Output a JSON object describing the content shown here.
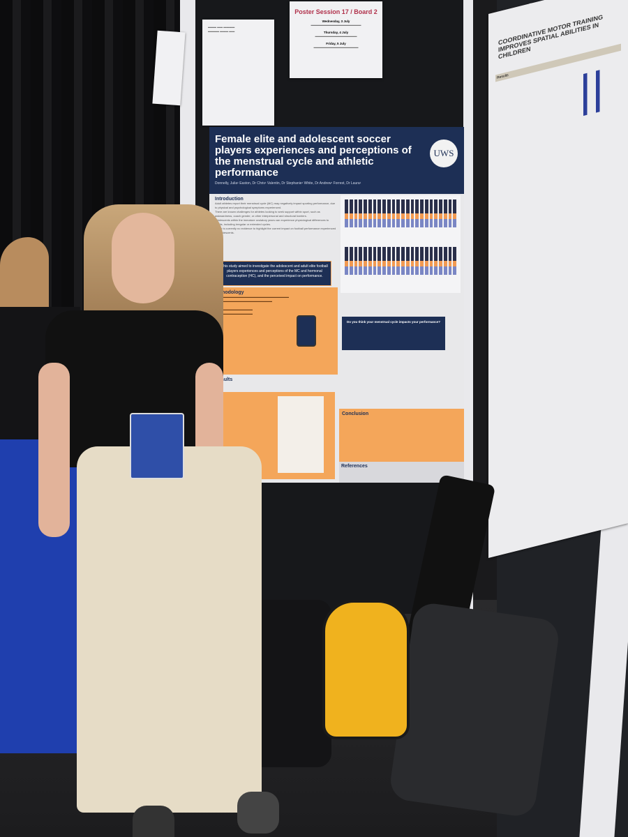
{
  "session_sign": {
    "title": "Poster Session 17 / Board 2",
    "days": [
      "Wednesday, 3 July",
      "Thursday, 4 July",
      "Friday, 5 July"
    ]
  },
  "poster": {
    "title": "Female elite and adolescent soccer players experiences and perceptions of the menstrual cycle and athletic performance",
    "authors": "Donnelly, Julia¹ Easton, Dr Chris¹ Valentin, Dr Stephanie¹ White, Dr Andrew¹ Forrest, Dr Laura¹",
    "logo": "UWS",
    "sections": {
      "introduction": "Introduction",
      "aim": "This study aimed to investigate the adolescent and adult elite football players experiences and perceptions of the MC and hormonal contraception (HC), and the perceived impact on performance.",
      "methodology": "Methodology",
      "results": "Results",
      "question": "Do you think your menstrual cycle impacts your performance?",
      "conclusion": "Conclusion",
      "references": "References"
    },
    "intro_points": [
      "Adult athletes report their menstrual cycle (MC) may negatively impact sporting performance, due to physical and psychological symptoms experienced.",
      "There are known challenges for athletes looking to seek support within sport, such as awkwardness, coach gender, or other interpersonal and structural barriers.",
      "Adolescents within the immature ovulatory years can experience physiological differences to adults, including irregular or extended cycles.",
      "There is currently no evidence to highlight the current impact on football performance experienced by adolescents."
    ]
  },
  "right_poster": {
    "title": "Coordinative motor training improves spatial abilities in children",
    "section": "Results"
  }
}
